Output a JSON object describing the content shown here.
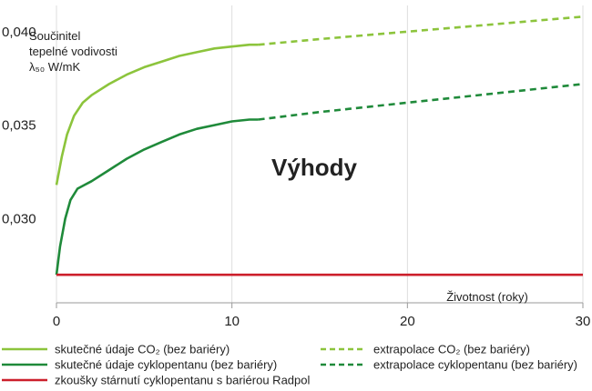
{
  "colors": {
    "co2": "#8cc43c",
    "cyclopentane": "#1f8a3a",
    "radpol": "#cc1f2b",
    "grid": "#dddddd",
    "axis": "#999999"
  },
  "chart_data": {
    "type": "line",
    "ylabel_lines": [
      "Součinitel",
      "tepelné vodivosti",
      "λ₅₀ W/mK"
    ],
    "xlabel": "Životnost (roky)",
    "annotation": "Výhody",
    "xlim": [
      0,
      30
    ],
    "ylim": [
      0.0255,
      0.0414
    ],
    "xticks": [
      0,
      10,
      20,
      30
    ],
    "yticks": [
      0.03,
      0.035,
      0.04
    ],
    "ytick_labels": [
      "0,030",
      "0,035",
      "0,040"
    ],
    "grid": "vertical",
    "legend_position": "bottom",
    "series": [
      {
        "name": "skutečné údaje CO₂ (bez bariéry)",
        "color_key": "co2",
        "style": "solid",
        "x": [
          0,
          0.3,
          0.6,
          1.0,
          1.5,
          2.0,
          3.0,
          4.0,
          5.0,
          6.0,
          7.0,
          8.0,
          9.0,
          10.0,
          11.0,
          11.5
        ],
        "y": [
          0.0318,
          0.0333,
          0.0345,
          0.0355,
          0.0362,
          0.0366,
          0.0372,
          0.0377,
          0.0381,
          0.0384,
          0.0387,
          0.0389,
          0.0391,
          0.0392,
          0.0393,
          0.0393
        ]
      },
      {
        "name": "skutečné údaje cyklopentanu (bez bariéry)",
        "color_key": "cyclopentane",
        "style": "solid",
        "x": [
          0,
          0.2,
          0.5,
          0.8,
          1.2,
          1.6,
          2.0,
          3.0,
          4.0,
          5.0,
          6.0,
          7.0,
          8.0,
          9.0,
          10.0,
          11.0,
          11.5
        ],
        "y": [
          0.027,
          0.0285,
          0.03,
          0.031,
          0.0316,
          0.0318,
          0.032,
          0.0326,
          0.0332,
          0.0337,
          0.0341,
          0.0345,
          0.0348,
          0.035,
          0.0352,
          0.0353,
          0.0353
        ]
      },
      {
        "name": "zkoušky stárnutí cyklopentanu s bariérou Radpol",
        "color_key": "radpol",
        "style": "solid",
        "x": [
          0,
          30
        ],
        "y": [
          0.027,
          0.027
        ]
      },
      {
        "name": "extrapolace CO₂ (bez bariéry)",
        "color_key": "co2",
        "style": "dashed",
        "x": [
          11.5,
          15,
          20,
          25,
          30
        ],
        "y": [
          0.0393,
          0.0396,
          0.04,
          0.0404,
          0.0408
        ]
      },
      {
        "name": "extrapolace cyklopentanu (bez bariéry)",
        "color_key": "cyclopentane",
        "style": "dashed",
        "x": [
          11.5,
          15,
          20,
          25,
          30
        ],
        "y": [
          0.0353,
          0.0357,
          0.0362,
          0.0367,
          0.0372
        ]
      }
    ],
    "legend": [
      {
        "label": "skutečné údaje CO₂ (bez bariéry)",
        "color_key": "co2",
        "style": "solid"
      },
      {
        "label": "extrapolace CO₂ (bez bariéry)",
        "color_key": "co2",
        "style": "dashed"
      },
      {
        "label": "skutečné údaje cyklopentanu (bez bariéry)",
        "color_key": "cyclopentane",
        "style": "solid"
      },
      {
        "label": "extrapolace cyklopentanu (bez bariéry)",
        "color_key": "cyclopentane",
        "style": "dashed"
      },
      {
        "label": "zkoušky stárnutí cyklopentanu s bariérou Radpol",
        "color_key": "radpol",
        "style": "solid"
      }
    ]
  }
}
